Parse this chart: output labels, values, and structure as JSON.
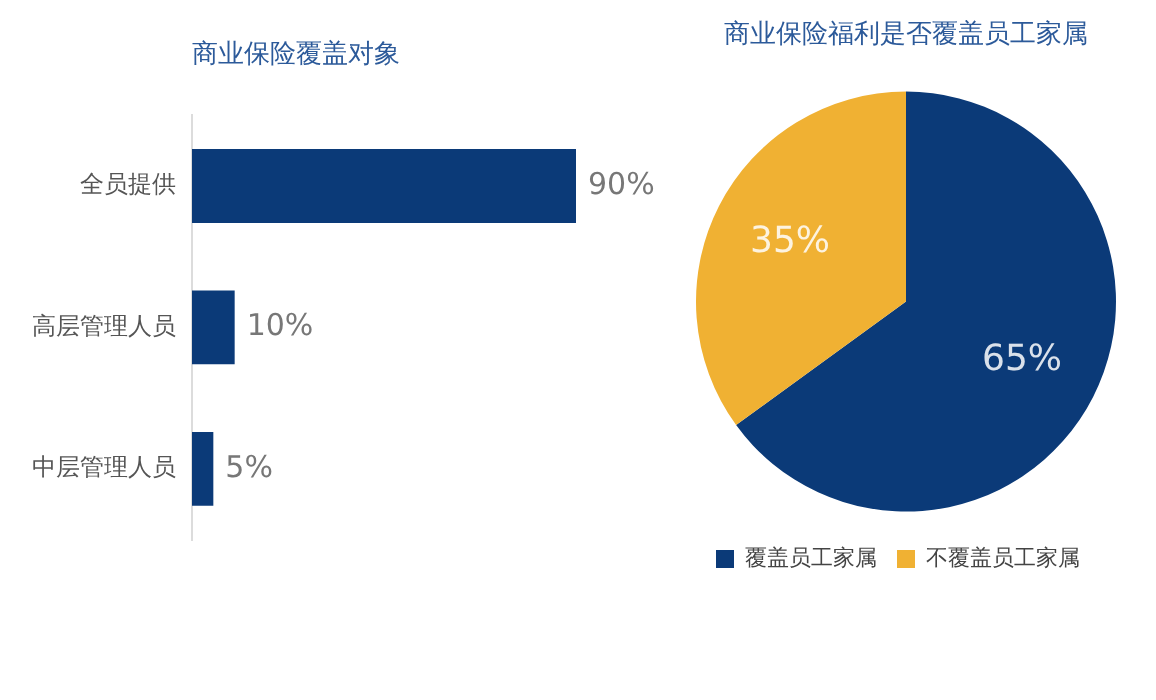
{
  "chart_data": [
    {
      "type": "bar",
      "orientation": "horizontal",
      "title": "商业保险覆盖对象",
      "categories": [
        "全员提供",
        "高层管理人员",
        "中层管理人员"
      ],
      "values": [
        90,
        10,
        5
      ],
      "value_labels": [
        "90%",
        "10%",
        "5%"
      ],
      "color": "#0b3a78"
    },
    {
      "type": "pie",
      "title": "商业保险福利是否覆盖员工家属",
      "categories": [
        "覆盖员工家属",
        "不覆盖员工家属"
      ],
      "values": [
        65,
        35
      ],
      "value_labels": [
        "65%",
        "35%"
      ],
      "colors": [
        "#0b3a78",
        "#f0b133"
      ],
      "legend": "bottom"
    }
  ]
}
